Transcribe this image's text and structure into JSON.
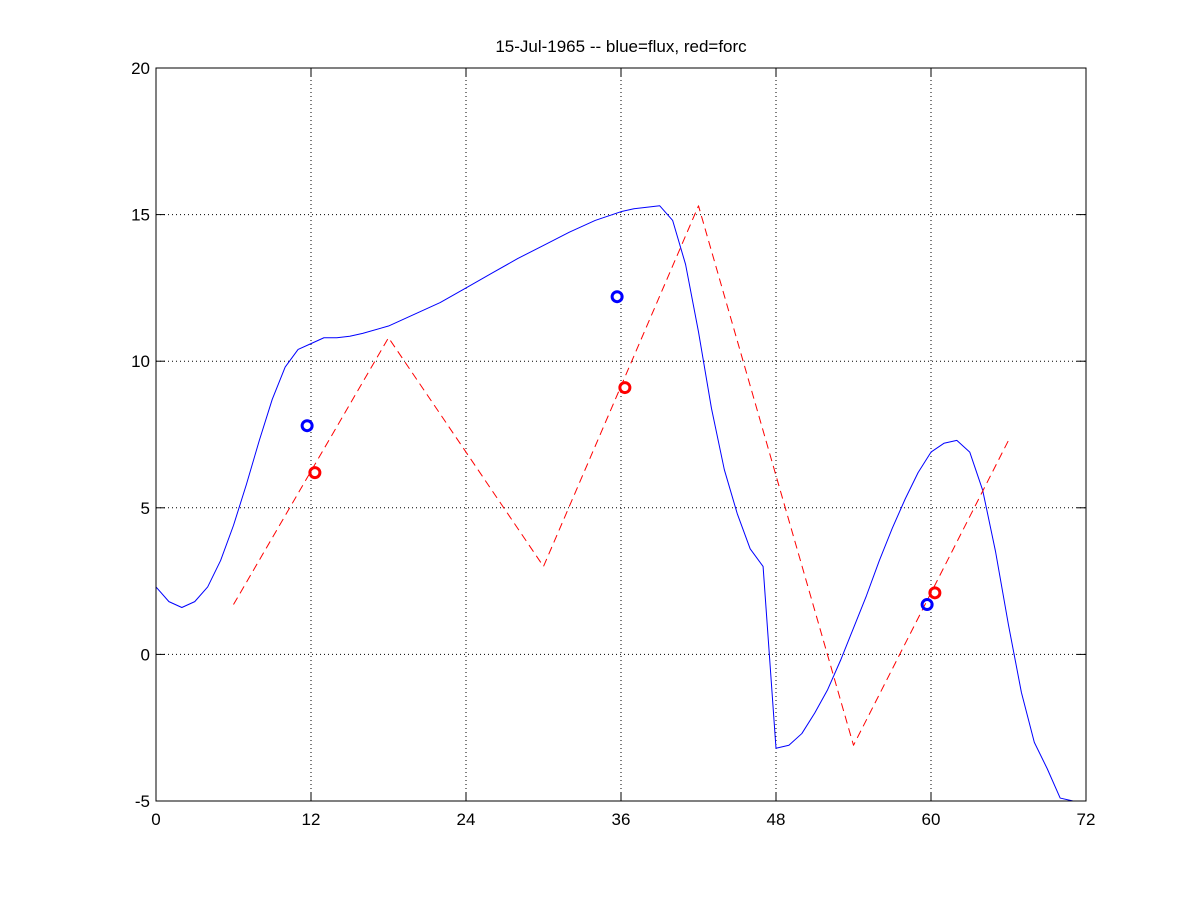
{
  "chart_data": {
    "type": "line",
    "title": "15-Jul-1965 -- blue=flux, red=forc",
    "xlabel": "",
    "ylabel": "",
    "xlim": [
      0,
      72
    ],
    "ylim": [
      -5,
      20
    ],
    "x_ticks": [
      0,
      12,
      24,
      36,
      48,
      60,
      72
    ],
    "y_ticks": [
      -5,
      0,
      5,
      10,
      15,
      20
    ],
    "grid": true,
    "legend": "none",
    "series": [
      {
        "color": "#0000ff",
        "style": "solid",
        "x": [
          0,
          1,
          2,
          3,
          4,
          5,
          6,
          7,
          8,
          9,
          10,
          11,
          12,
          13,
          14,
          15,
          16,
          18,
          20,
          22,
          24,
          26,
          28,
          30,
          32,
          34,
          36,
          37,
          38,
          39,
          40,
          41,
          42,
          43,
          44,
          45,
          46,
          47,
          48,
          49,
          50,
          51,
          52,
          53,
          54,
          55,
          56,
          57,
          58,
          59,
          60,
          61,
          62,
          63,
          64,
          65,
          66,
          67,
          68,
          69,
          70,
          71
        ],
        "y": [
          2.3,
          1.8,
          1.6,
          1.8,
          2.3,
          3.2,
          4.4,
          5.8,
          7.3,
          8.7,
          9.8,
          10.4,
          10.6,
          10.8,
          10.8,
          10.85,
          10.95,
          11.2,
          11.6,
          12.0,
          12.5,
          13.0,
          13.5,
          13.95,
          14.4,
          14.8,
          15.1,
          15.2,
          15.25,
          15.3,
          14.8,
          13.3,
          11.0,
          8.4,
          6.3,
          4.8,
          3.6,
          3.0,
          -3.2,
          -3.1,
          -2.7,
          -2.0,
          -1.2,
          -0.2,
          0.9,
          2.0,
          3.2,
          4.3,
          5.3,
          6.2,
          6.9,
          7.2,
          7.3,
          6.9,
          5.6,
          3.5,
          1.0,
          -1.3,
          -3.0,
          -3.9,
          -4.9,
          -5.0
        ]
      },
      {
        "color": "#ff0000",
        "style": "dashed",
        "x": [
          6,
          18,
          30,
          42,
          54,
          66
        ],
        "y": [
          1.7,
          10.8,
          3.0,
          15.3,
          -3.1,
          7.3
        ]
      },
      {
        "color": "#0000ff",
        "style": "markers",
        "x": [
          11.7,
          35.7,
          59.7
        ],
        "y": [
          7.8,
          12.2,
          1.7
        ]
      },
      {
        "color": "#ff0000",
        "style": "markers",
        "x": [
          12.3,
          36.3,
          60.3
        ],
        "y": [
          6.2,
          9.1,
          2.1
        ]
      }
    ]
  }
}
